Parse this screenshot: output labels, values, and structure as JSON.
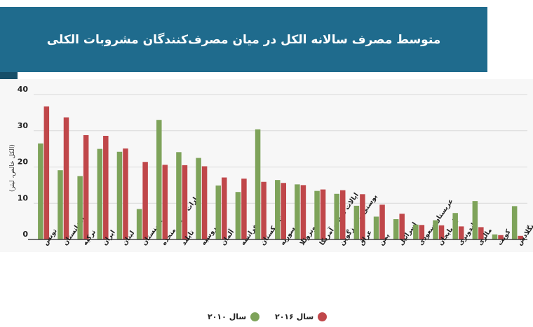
{
  "title": "متوسط مصرف سالانه الکل در میان مصرف‌کنندگان مشروبات الکلی",
  "colors": {
    "series2010": "#7ea35a",
    "series2016": "#c0474a",
    "banner": "#1f6b8d"
  },
  "chart_data": {
    "type": "bar",
    "title": "متوسط مصرف سالانه الکل در میان مصرف‌کنندگان مشروبات الکلی",
    "ylabel": "(الکل خالص، لیتر)",
    "xlabel": "",
    "ylim": [
      0,
      40
    ],
    "yticks": [
      0,
      10,
      20,
      30,
      40
    ],
    "grid": true,
    "legend": "bottom",
    "categories": [
      "تونس",
      "افغانستان",
      "ترکیه",
      "ایران",
      "لبنان",
      "ارمنستان",
      "امارات عربی متحده",
      "تایلند",
      "روسیه",
      "آلمان",
      "فرانسه",
      "تاجیکستان",
      "سوریه",
      "ونزوئلا",
      "ایالات متحده آمریکا",
      "بوسنی و هرزگوین",
      "عراق",
      "یمن",
      "اسرائیل",
      "عربستان سعودی",
      "آذربایجان",
      "اندونزی",
      "مالزی",
      "کویت",
      "بنگلادش"
    ],
    "series": [
      {
        "name": "سال ۲۰۱۰",
        "values": [
          26.5,
          19.1,
          17.5,
          25,
          24.2,
          8.4,
          33,
          24.1,
          22.5,
          14.9,
          13.1,
          30.4,
          16.4,
          15.2,
          13.4,
          12.6,
          9.3,
          6.3,
          5.6,
          4.1,
          5.3,
          7.3,
          10.6,
          1.4,
          9.2
        ]
      },
      {
        "name": "سال ۲۰۱۶",
        "values": [
          36.7,
          33.7,
          28.8,
          28.6,
          25.1,
          21.4,
          20.6,
          20.5,
          20.2,
          17.1,
          16.8,
          15.9,
          15.6,
          15,
          13.8,
          13.6,
          12.5,
          9.6,
          7.1,
          4,
          3.9,
          3.6,
          3.4,
          1.2,
          1
        ]
      }
    ]
  },
  "legend": {
    "items": [
      {
        "label": "سال ۲۰۱۶",
        "color": "#c0474a"
      },
      {
        "label": "سال ۲۰۱۰",
        "color": "#7ea35a"
      }
    ]
  }
}
